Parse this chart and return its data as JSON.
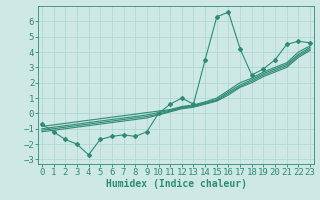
{
  "x": [
    0,
    1,
    2,
    3,
    4,
    5,
    6,
    7,
    8,
    9,
    10,
    11,
    12,
    13,
    14,
    15,
    16,
    17,
    18,
    19,
    20,
    21,
    22,
    23
  ],
  "y_jagged": [
    -0.7,
    -1.2,
    -1.7,
    -2.0,
    -2.7,
    -1.7,
    -1.5,
    -1.4,
    -1.5,
    -1.2,
    0.0,
    0.6,
    1.0,
    0.6,
    3.5,
    6.3,
    6.6,
    4.2,
    2.5,
    2.9,
    3.5,
    4.5,
    4.7,
    4.6
  ],
  "smooth_lines": [
    [
      -0.85,
      -0.75,
      -0.65,
      -0.55,
      -0.45,
      -0.35,
      -0.25,
      -0.15,
      -0.05,
      0.05,
      0.15,
      0.25,
      0.45,
      0.55,
      0.75,
      1.0,
      1.5,
      2.0,
      2.3,
      2.7,
      3.0,
      3.3,
      4.0,
      4.4
    ],
    [
      -1.0,
      -0.9,
      -0.8,
      -0.7,
      -0.6,
      -0.5,
      -0.4,
      -0.3,
      -0.2,
      -0.1,
      0.05,
      0.2,
      0.4,
      0.5,
      0.7,
      0.9,
      1.4,
      1.85,
      2.2,
      2.6,
      2.9,
      3.2,
      3.85,
      4.3
    ],
    [
      -1.1,
      -1.0,
      -0.9,
      -0.8,
      -0.7,
      -0.6,
      -0.5,
      -0.4,
      -0.3,
      -0.2,
      -0.05,
      0.15,
      0.35,
      0.45,
      0.65,
      0.85,
      1.3,
      1.75,
      2.1,
      2.5,
      2.8,
      3.1,
      3.75,
      4.2
    ],
    [
      -1.2,
      -1.1,
      -1.0,
      -0.9,
      -0.8,
      -0.7,
      -0.6,
      -0.5,
      -0.4,
      -0.3,
      -0.1,
      0.1,
      0.3,
      0.4,
      0.6,
      0.8,
      1.2,
      1.7,
      2.0,
      2.4,
      2.7,
      3.0,
      3.65,
      4.1
    ]
  ],
  "line_color": "#2e8b74",
  "background_color": "#cde8e5",
  "grid_color": "#aed4d0",
  "xlabel": "Humidex (Indice chaleur)",
  "xlim": [
    -0.3,
    23.3
  ],
  "ylim": [
    -3.3,
    7.0
  ],
  "yticks": [
    -3,
    -2,
    -1,
    0,
    1,
    2,
    3,
    4,
    5,
    6
  ],
  "xticks": [
    0,
    1,
    2,
    3,
    4,
    5,
    6,
    7,
    8,
    9,
    10,
    11,
    12,
    13,
    14,
    15,
    16,
    17,
    18,
    19,
    20,
    21,
    22,
    23
  ],
  "marker": "D",
  "markersize": 2.0,
  "linewidth": 0.8,
  "font_size": 6.5,
  "xlabel_fontsize": 7.0,
  "xlabel_fontweight": "bold"
}
